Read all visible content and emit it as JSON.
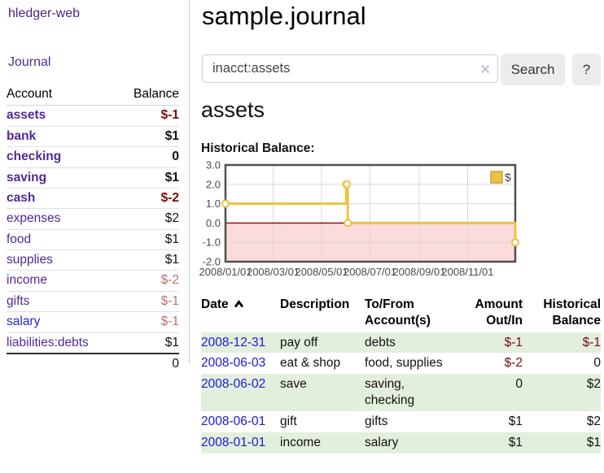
{
  "app": {
    "title": "hledger-web"
  },
  "sidebar": {
    "journal_label": "Journal",
    "accounts_table": {
      "headers": {
        "account": "Account",
        "balance": "Balance"
      },
      "rows": [
        {
          "name": "assets",
          "level": 1,
          "balance": "$-1",
          "bold": true,
          "link_color": "purple",
          "balance_style": "neg-strong"
        },
        {
          "name": "bank",
          "level": 2,
          "balance": "$1",
          "bold": true,
          "link_color": "purple",
          "balance_style": "pos-strong"
        },
        {
          "name": "checking",
          "level": 3,
          "balance": "0",
          "bold": true,
          "link_color": "purple",
          "balance_style": "pos-strong"
        },
        {
          "name": "saving",
          "level": 3,
          "balance": "$1",
          "bold": true,
          "link_color": "purple",
          "balance_style": "pos-strong"
        },
        {
          "name": "cash",
          "level": 2,
          "balance": "$-2",
          "bold": true,
          "link_color": "purple",
          "balance_style": "neg-strong"
        },
        {
          "name": "expenses",
          "level": 1,
          "balance": "$2",
          "bold": false,
          "link_color": "purple",
          "balance_style": "pos"
        },
        {
          "name": "food",
          "level": 2,
          "balance": "$1",
          "bold": false,
          "link_color": "purple",
          "balance_style": "pos"
        },
        {
          "name": "supplies",
          "level": 2,
          "balance": "$1",
          "bold": false,
          "link_color": "purple",
          "balance_style": "pos"
        },
        {
          "name": "income",
          "level": 1,
          "balance": "$-2",
          "bold": false,
          "link_color": "purple",
          "balance_style": "neg"
        },
        {
          "name": "gifts",
          "level": 2,
          "balance": "$-1",
          "bold": false,
          "link_color": "purple",
          "balance_style": "neg"
        },
        {
          "name": "salary",
          "level": 2,
          "balance": "$-1",
          "bold": false,
          "link_color": "blue",
          "balance_style": "neg"
        },
        {
          "name": "liabilities:debts",
          "level": 1,
          "balance": "$1",
          "bold": false,
          "link_color": "purple",
          "balance_style": "pos"
        }
      ],
      "total": "0"
    }
  },
  "main": {
    "title": "sample.journal",
    "search": {
      "value": "inacct:assets",
      "button_label": "Search",
      "help_label": "?"
    },
    "account_heading": "assets",
    "chart_label": "Historical Balance:",
    "register_table": {
      "headers": {
        "date": "Date",
        "description": "Description",
        "accounts": "To/From Account(s)",
        "amount": "Amount Out/In",
        "balance": "Historical Balance"
      },
      "sort": {
        "column": "date",
        "direction": "ascending"
      },
      "rows": [
        {
          "date": "2008-12-31",
          "description": "pay off",
          "accounts": "debts",
          "amount": "$-1",
          "amount_negative": true,
          "balance": "$-1",
          "balance_negative": true,
          "highlight": true
        },
        {
          "date": "2008-06-03",
          "description": "eat & shop",
          "accounts": "food, supplies",
          "amount": "$-2",
          "amount_negative": true,
          "balance": "0",
          "balance_negative": false,
          "highlight": false
        },
        {
          "date": "2008-06-02",
          "description": "save",
          "accounts": "saving, checking",
          "amount": "0",
          "amount_negative": false,
          "balance": "$2",
          "balance_negative": false,
          "highlight": true
        },
        {
          "date": "2008-06-01",
          "description": "gift",
          "accounts": "gifts",
          "amount": "$1",
          "amount_negative": false,
          "balance": "$2",
          "balance_negative": false,
          "highlight": false
        },
        {
          "date": "2008-01-01",
          "description": "income",
          "accounts": "salary",
          "amount": "$1",
          "amount_negative": false,
          "balance": "$1",
          "balance_negative": false,
          "highlight": true
        }
      ]
    }
  },
  "icons": {
    "clear_search": "×",
    "sort_date": "chevron-up"
  },
  "chart_data": {
    "type": "line",
    "style": "step-after",
    "title": "Historical Balance:",
    "xlabel": "",
    "ylabel": "",
    "xrange": [
      "2008/01/01",
      "2008/12/31"
    ],
    "ylim": [
      -2,
      3
    ],
    "yticks": [
      3.0,
      2.0,
      1.0,
      0.0,
      -1.0,
      -2.0
    ],
    "ytick_labels": [
      "3.0",
      "2.0",
      "1.0",
      "0.0",
      "-1.0",
      "-2.0"
    ],
    "xticks": [
      "2008/01/01",
      "2008/03/01",
      "2008/05/01",
      "2008/07/01",
      "2008/09/01",
      "2008/11/01"
    ],
    "grid": true,
    "legend": [
      "$"
    ],
    "legend_position": "top-right",
    "series": [
      {
        "name": "$",
        "color": "#EDC240",
        "points": [
          [
            "2008/01/01",
            1
          ],
          [
            "2008/06/01",
            2
          ],
          [
            "2008/06/02",
            2
          ],
          [
            "2008/06/03",
            0
          ],
          [
            "2008/12/31",
            -1
          ]
        ]
      }
    ],
    "negative_region_fill": "#fbdbdb",
    "zero_line_color": "#8b0000"
  },
  "colors": {
    "link_purple": "#4f2a96",
    "link_blue": "#2525d1",
    "date_link_blue": "#1a1ad8",
    "negative_strong": "#7c0a0a",
    "negative_soft": "#ba7070",
    "row_highlight_green": "#e3efdd",
    "chart_line_gold": "#EDC240",
    "chart_negative_pink": "#fbdbdb",
    "chart_zero_red": "#8b0000",
    "button_gray": "#ececec"
  }
}
